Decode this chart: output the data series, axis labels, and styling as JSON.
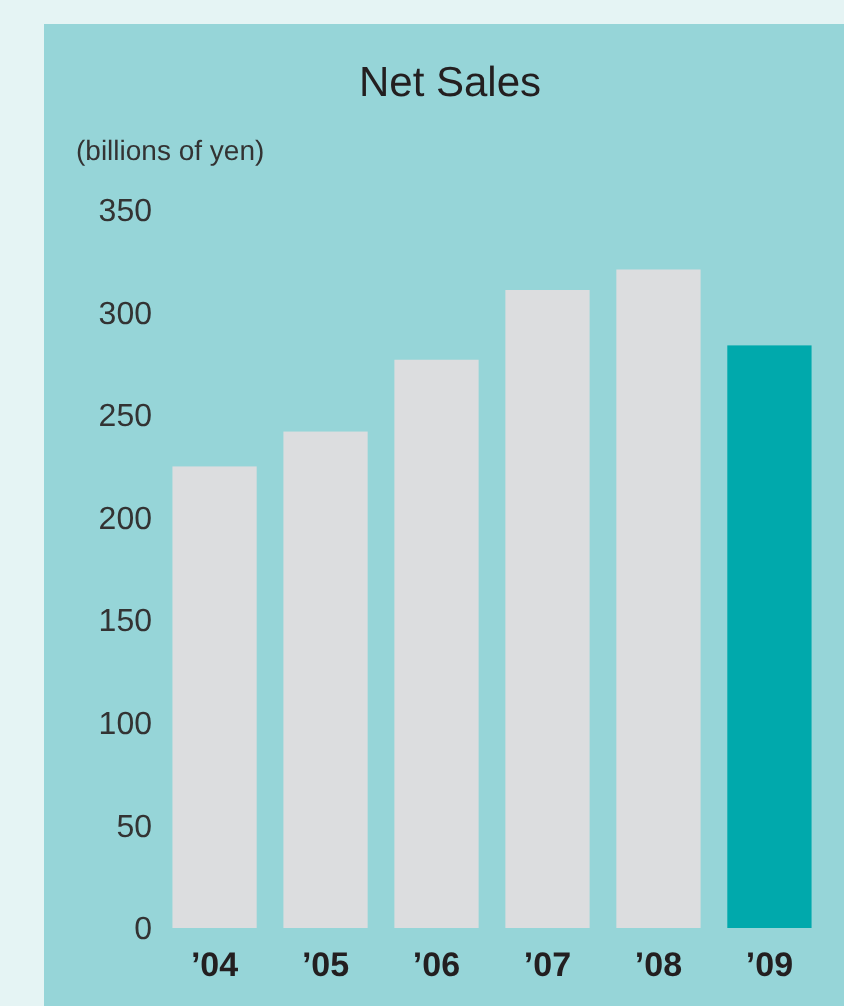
{
  "chart_data": {
    "type": "bar",
    "title": "Net Sales",
    "ylabel": "(billions of yen)",
    "categories": [
      "’04",
      "’05",
      "’06",
      "’07",
      "’08",
      "’09"
    ],
    "values": [
      225,
      242,
      277,
      311,
      321,
      284
    ],
    "colors": [
      "#dcdddf",
      "#dcdddf",
      "#dcdddf",
      "#dcdddf",
      "#dcdddf",
      "#00a9ac"
    ],
    "ylim": [
      0,
      350
    ],
    "yticks": [
      0,
      50,
      100,
      150,
      200,
      250,
      300,
      350
    ],
    "grid": false
  }
}
